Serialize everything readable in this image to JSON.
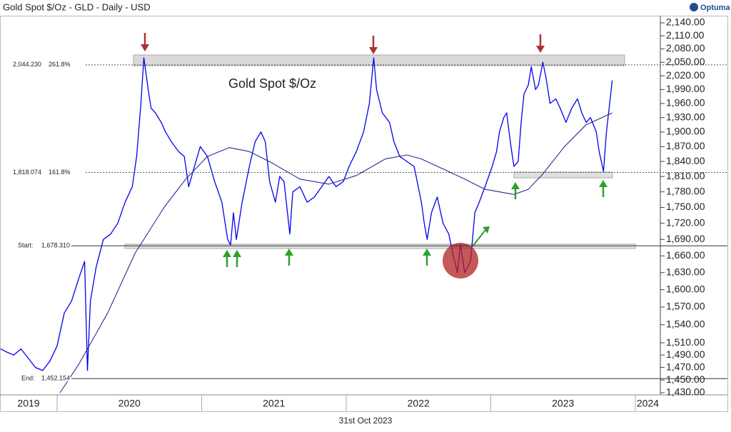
{
  "brand": "Optuma",
  "chart_data": {
    "type": "line",
    "title": "Gold Spot $/Oz - GLD - Daily - USD",
    "date_label": "31st Oct 2023",
    "log_scale": true,
    "xlim": [
      2019.605,
      2024.173
    ],
    "xticks": [
      {
        "value": 2019,
        "label": "2019"
      },
      {
        "value": 2020,
        "label": "2020"
      },
      {
        "value": 2021,
        "label": "2021"
      },
      {
        "value": 2022,
        "label": "2022"
      },
      {
        "value": 2023,
        "label": "2023"
      },
      {
        "value": 2024,
        "label": "2024"
      }
    ],
    "ylim": [
      1430,
      2140
    ],
    "yticks": [
      {
        "value": 2140,
        "label": "2,140.00"
      },
      {
        "value": 2110,
        "label": "2,110.00"
      },
      {
        "value": 2080,
        "label": "2,080.00"
      },
      {
        "value": 2050,
        "label": "2,050.00"
      },
      {
        "value": 2020,
        "label": "2,020.00"
      },
      {
        "value": 1990,
        "label": "1,990.00"
      },
      {
        "value": 1960,
        "label": "1,960.00"
      },
      {
        "value": 1930,
        "label": "1,930.00"
      },
      {
        "value": 1900,
        "label": "1,900.00"
      },
      {
        "value": 1870,
        "label": "1,870.00"
      },
      {
        "value": 1840,
        "label": "1,840.00"
      },
      {
        "value": 1810,
        "label": "1,810.00"
      },
      {
        "value": 1780,
        "label": "1,780.00"
      },
      {
        "value": 1750,
        "label": "1,750.00"
      },
      {
        "value": 1720,
        "label": "1,720.00"
      },
      {
        "value": 1690,
        "label": "1,690.00"
      },
      {
        "value": 1660,
        "label": "1,660.00"
      },
      {
        "value": 1630,
        "label": "1,630.00"
      },
      {
        "value": 1600,
        "label": "1,600.00"
      },
      {
        "value": 1570,
        "label": "1,570.00"
      },
      {
        "value": 1540,
        "label": "1,540.00"
      },
      {
        "value": 1510,
        "label": "1,510.00"
      },
      {
        "value": 1490,
        "label": "1,490.00"
      },
      {
        "value": 1470,
        "label": "1,470.00"
      },
      {
        "value": 1450,
        "label": "1,450.00"
      },
      {
        "value": 1430,
        "label": "1,430.00"
      }
    ],
    "levels": [
      {
        "value": 2044.23,
        "label": "2,044.230",
        "ratio": "261.8%",
        "style": "dashed"
      },
      {
        "value": 1818.074,
        "label": "1,818.074",
        "ratio": "161.8%",
        "style": "dashed"
      },
      {
        "value": 1678.31,
        "label": "1,678.310",
        "name": "Start:",
        "style": "solid"
      },
      {
        "value": 1452.154,
        "label": "1,452.154",
        "name": "End:",
        "style": "solid"
      }
    ],
    "series": [
      {
        "name": "Gold Spot $/Oz",
        "color": "#0000ee",
        "x": [
          2019.61,
          2019.65,
          2019.7,
          2019.75,
          2019.8,
          2019.85,
          2019.9,
          2019.95,
          2020.0,
          2020.05,
          2020.1,
          2020.15,
          2020.19,
          2020.21,
          2020.23,
          2020.27,
          2020.32,
          2020.37,
          2020.42,
          2020.47,
          2020.52,
          2020.55,
          2020.58,
          2020.6,
          2020.63,
          2020.65,
          2020.68,
          2020.72,
          2020.75,
          2020.79,
          2020.84,
          2020.88,
          2020.91,
          2020.95,
          2020.99,
          2021.04,
          2021.09,
          2021.14,
          2021.18,
          2021.2,
          2021.22,
          2021.24,
          2021.28,
          2021.33,
          2021.37,
          2021.41,
          2021.44,
          2021.47,
          2021.51,
          2021.54,
          2021.57,
          2021.61,
          2021.63,
          2021.68,
          2021.73,
          2021.78,
          2021.83,
          2021.88,
          2021.93,
          2021.98,
          2022.02,
          2022.07,
          2022.12,
          2022.16,
          2022.19,
          2022.21,
          2022.25,
          2022.3,
          2022.33,
          2022.37,
          2022.42,
          2022.47,
          2022.52,
          2022.54,
          2022.56,
          2022.59,
          2022.63,
          2022.67,
          2022.71,
          2022.74,
          2022.77,
          2022.79,
          2022.82,
          2022.84,
          2022.86,
          2022.89,
          2022.92,
          2022.96,
          2023.01,
          2023.04,
          2023.06,
          2023.09,
          2023.11,
          2023.14,
          2023.16,
          2023.19,
          2023.21,
          2023.23,
          2023.26,
          2023.28,
          2023.31,
          2023.33,
          2023.36,
          2023.38,
          2023.41,
          2023.45,
          2023.48,
          2023.52,
          2023.56,
          2023.6,
          2023.63,
          2023.66,
          2023.69,
          2023.73,
          2023.75,
          2023.78,
          2023.8,
          2023.83,
          2023.84
        ],
        "values": [
          1500,
          1495,
          1490,
          1500,
          1485,
          1470,
          1465,
          1480,
          1505,
          1560,
          1580,
          1620,
          1650,
          1465,
          1580,
          1640,
          1690,
          1700,
          1720,
          1760,
          1790,
          1850,
          1960,
          2060,
          1990,
          1950,
          1940,
          1920,
          1900,
          1880,
          1860,
          1850,
          1790,
          1830,
          1870,
          1850,
          1800,
          1760,
          1690,
          1680,
          1740,
          1690,
          1760,
          1830,
          1880,
          1900,
          1880,
          1800,
          1760,
          1810,
          1800,
          1700,
          1780,
          1790,
          1760,
          1770,
          1790,
          1810,
          1790,
          1800,
          1830,
          1860,
          1900,
          1960,
          2060,
          1990,
          1940,
          1920,
          1880,
          1850,
          1840,
          1830,
          1760,
          1720,
          1690,
          1740,
          1770,
          1720,
          1700,
          1660,
          1630,
          1680,
          1630,
          1640,
          1650,
          1740,
          1760,
          1790,
          1830,
          1860,
          1900,
          1930,
          1940,
          1870,
          1830,
          1840,
          1920,
          1980,
          2000,
          2040,
          1990,
          2000,
          2050,
          2020,
          1960,
          1970,
          1950,
          1920,
          1950,
          1970,
          1940,
          1920,
          1930,
          1900,
          1860,
          1820,
          1900,
          1980,
          2010
        ]
      },
      {
        "color": "#2a2a90",
        "x": [
          2020.02,
          2020.15,
          2020.35,
          2020.54,
          2020.74,
          2020.89,
          2021.04,
          2021.19,
          2021.33,
          2021.48,
          2021.68,
          2021.88,
          2022.07,
          2022.27,
          2022.42,
          2022.52,
          2022.67,
          2022.82,
          2022.96,
          2023.16,
          2023.26,
          2023.36,
          2023.51,
          2023.66,
          2023.84
        ],
        "values": [
          1430,
          1475,
          1560,
          1665,
          1750,
          1805,
          1850,
          1868,
          1860,
          1838,
          1805,
          1795,
          1812,
          1845,
          1853,
          1845,
          1825,
          1805,
          1785,
          1775,
          1785,
          1815,
          1870,
          1915,
          1940
        ]
      }
    ]
  }
}
